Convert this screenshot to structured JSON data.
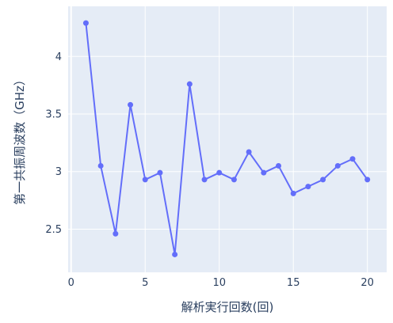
{
  "chart_data": {
    "type": "line",
    "xlabel": "解析実行回数(回)",
    "ylabel": "第一共振周波数（GHz）",
    "xlim": [
      -0.2,
      21.3
    ],
    "ylim": [
      2.125,
      4.435
    ],
    "x_ticks": [
      0,
      5,
      10,
      15,
      20
    ],
    "y_ticks": [
      2.5,
      3,
      3.5,
      4
    ],
    "x_tick_labels": [
      "0",
      "5",
      "10",
      "15",
      "20"
    ],
    "y_tick_labels": [
      "2.5",
      "3",
      "3.5",
      "4"
    ],
    "grid": true,
    "legend": "none",
    "colors": {
      "line": "#636efa",
      "plot_bg": "#e5ecf6",
      "grid": "#ffffff",
      "text": "#2a3f5f"
    },
    "series": [
      {
        "x": [
          1,
          2,
          3,
          4,
          5,
          6,
          7,
          8,
          9,
          10,
          11,
          12,
          13,
          14,
          15,
          16,
          17,
          18,
          19,
          20
        ],
        "y": [
          4.29,
          3.05,
          2.46,
          3.58,
          2.93,
          2.99,
          2.28,
          3.76,
          2.93,
          2.99,
          2.93,
          3.17,
          2.99,
          3.05,
          2.81,
          2.87,
          2.93,
          3.05,
          3.11,
          2.93
        ]
      }
    ]
  }
}
